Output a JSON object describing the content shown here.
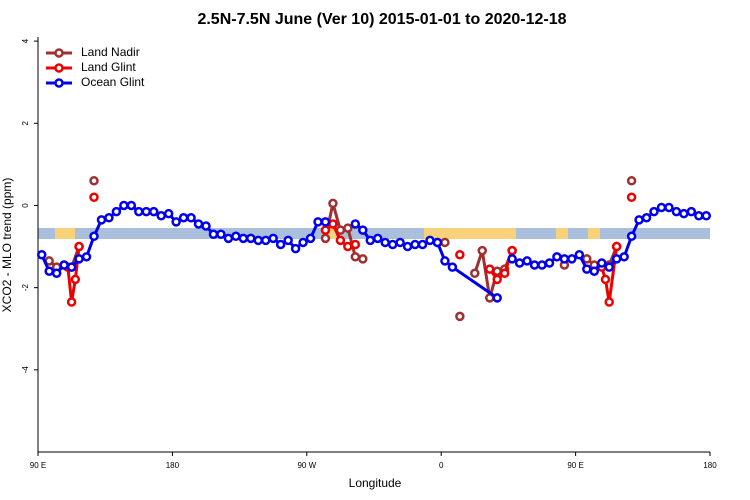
{
  "chart_data": {
    "type": "line",
    "title": "2.5N-7.5N June (Ver 10)   2015-01-01 to 2020-12-18",
    "x_label": "Longitude",
    "y_label": "XCO2 - MLO trend (ppm)",
    "xlim": [
      90,
      540
    ],
    "xticks": [
      {
        "value": 90,
        "label": "90 E"
      },
      {
        "value": 180,
        "label": "180"
      },
      {
        "value": 270,
        "label": "90 W"
      },
      {
        "value": 360,
        "label": "0"
      },
      {
        "value": 450,
        "label": "90 E"
      },
      {
        "value": 540,
        "label": "180"
      }
    ],
    "ylim": [
      -6.0,
      4.1
    ],
    "yticks": [
      -4,
      -2,
      0,
      2,
      4
    ],
    "legend": "top-left",
    "series": [
      {
        "name": "Land Nadir",
        "color": "#a03030",
        "x": [
          97.5,
          102.5,
          107.5,
          112.5,
          117.5,
          122.5,
          127.5,
          132.5,
          282.5,
          287.5,
          292.5,
          297.5,
          302.5,
          307.5,
          312.5,
          357.5,
          362.5,
          367.5,
          372.5,
          377.5,
          382.5,
          387.5,
          392.5,
          397.5,
          402.5,
          407.5,
          412.5,
          442.5,
          447.5,
          457.5,
          462.5,
          467.5,
          472.5,
          477.5,
          482.5,
          487.5
        ],
        "values": [
          -1.35,
          -1.5,
          -1.45,
          -1.5,
          -1.0,
          null,
          0.6,
          null,
          -0.8,
          0.05,
          -0.6,
          -0.55,
          -1.25,
          -1.3,
          null,
          -0.9,
          -0.9,
          null,
          -2.7,
          null,
          -1.65,
          -1.1,
          -2.25,
          -1.6,
          -1.55,
          -1.1,
          null,
          -1.45,
          null,
          -1.3,
          -1.45,
          null,
          -1.45,
          -1.0,
          null,
          0.6
        ]
      },
      {
        "name": "Land Glint",
        "color": "#ee0000",
        "x": [
          110,
          112.5,
          115,
          117.5,
          122.5,
          127.5,
          132.5,
          282.5,
          287.5,
          292.5,
          297.5,
          302.5,
          307.5,
          372.5,
          377.5,
          392.5,
          397.5,
          402.5,
          407.5,
          412.5,
          467.5,
          470,
          472.5,
          477.5,
          482.5,
          487.5
        ],
        "values": [
          -1.5,
          -2.35,
          -1.8,
          -1.0,
          null,
          0.2,
          null,
          -0.6,
          -0.45,
          -0.85,
          -1.0,
          -0.95,
          null,
          -1.2,
          null,
          -1.55,
          -1.8,
          -1.65,
          -1.1,
          null,
          -1.5,
          -1.8,
          -2.35,
          -1.0,
          null,
          0.2
        ]
      },
      {
        "name": "Ocean Glint",
        "color": "#0000ee",
        "x": [
          92.5,
          97.5,
          102.5,
          107.5,
          112.5,
          117.5,
          122.5,
          127.5,
          132.5,
          137.5,
          142.5,
          147.5,
          152.5,
          157.5,
          162.5,
          167.5,
          172.5,
          177.5,
          182.5,
          187.5,
          192.5,
          197.5,
          202.5,
          207.5,
          212.5,
          217.5,
          222.5,
          227.5,
          232.5,
          237.5,
          242.5,
          247.5,
          252.5,
          257.5,
          262.5,
          267.5,
          272.5,
          277.5,
          282.5,
          287.5,
          302.5,
          307.5,
          312.5,
          317.5,
          322.5,
          327.5,
          332.5,
          337.5,
          342.5,
          347.5,
          352.5,
          357.5,
          362.5,
          367.5,
          397.5,
          402.5,
          407.5,
          412.5,
          417.5,
          422.5,
          427.5,
          432.5,
          437.5,
          442.5,
          447.5,
          452.5,
          457.5,
          462.5,
          467.5,
          472.5,
          477.5,
          482.5,
          487.5,
          492.5,
          497.5,
          502.5,
          507.5,
          512.5,
          517.5,
          522.5,
          527.5,
          532.5,
          537.5
        ],
        "values": [
          -1.2,
          -1.6,
          -1.65,
          -1.45,
          -1.5,
          -1.3,
          -1.25,
          -0.75,
          -0.35,
          -0.3,
          -0.15,
          0.0,
          0.0,
          -0.15,
          -0.15,
          -0.15,
          -0.25,
          -0.2,
          -0.4,
          -0.3,
          -0.3,
          -0.45,
          -0.5,
          -0.7,
          -0.7,
          -0.8,
          -0.75,
          -0.8,
          -0.8,
          -0.85,
          -0.85,
          -0.8,
          -0.95,
          -0.85,
          -1.05,
          -0.9,
          -0.8,
          -0.4,
          -0.4,
          null,
          -0.45,
          -0.6,
          -0.85,
          -0.8,
          -0.9,
          -0.95,
          -0.9,
          -1.0,
          -0.95,
          -0.95,
          -0.85,
          -0.9,
          -1.35,
          -1.5,
          -2.25,
          null,
          -1.3,
          -1.4,
          -1.35,
          -1.45,
          -1.45,
          -1.4,
          -1.25,
          -1.3,
          -1.3,
          -1.2,
          -1.55,
          -1.6,
          -1.4,
          -1.5,
          -1.3,
          -1.25,
          -0.75,
          -0.35,
          -0.3,
          -0.15,
          -0.05,
          -0.05,
          -0.15,
          -0.2,
          -0.15,
          -0.25,
          -0.25
        ]
      }
    ]
  }
}
